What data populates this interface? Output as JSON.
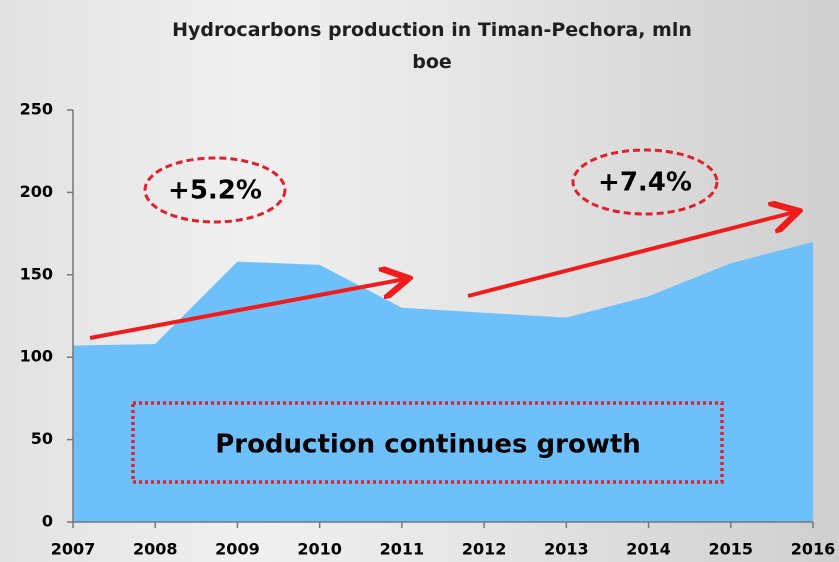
{
  "chart_data": {
    "type": "area",
    "title": "Hydrocarbons production in Timan-Pechora, mln boe",
    "categories": [
      "2007",
      "2008",
      "2009",
      "2010",
      "2011",
      "2012",
      "2013",
      "2014",
      "2015",
      "2016"
    ],
    "values": [
      107,
      108,
      158,
      156,
      130,
      127,
      124,
      137,
      157,
      170
    ],
    "color": "#6ec0fb",
    "ylim": [
      0,
      250
    ],
    "yticks": [
      0,
      50,
      100,
      150,
      200,
      250
    ],
    "grid": false,
    "annotations": [
      "+5.2%",
      "+7.4%",
      "Production continues growth"
    ]
  }
}
